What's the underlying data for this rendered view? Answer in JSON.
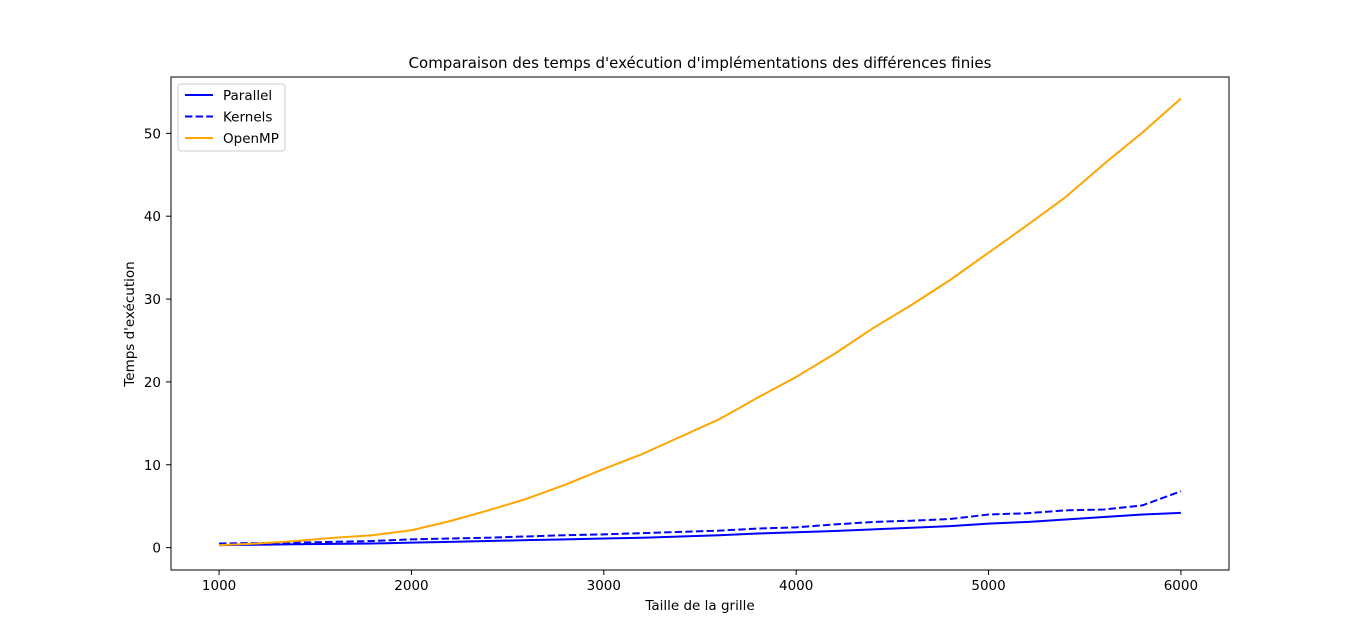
{
  "chart_data": {
    "type": "line",
    "title": "Comparaison des temps d'exécution d'implémentations des différences finies",
    "xlabel": "Taille de la grille",
    "ylabel": "Temps d'exécution",
    "xlim": [
      750,
      6250
    ],
    "ylim": [
      -2.7,
      56.8
    ],
    "xticks": [
      1000,
      2000,
      3000,
      4000,
      5000,
      6000
    ],
    "xtick_labels": [
      "1000",
      "2000",
      "3000",
      "4000",
      "5000",
      "6000"
    ],
    "yticks": [
      0,
      10,
      20,
      30,
      40,
      50
    ],
    "ytick_labels": [
      "0",
      "10",
      "20",
      "30",
      "40",
      "50"
    ],
    "grid": false,
    "legend_position": "top-left",
    "x": [
      1000,
      1200,
      1400,
      1600,
      1800,
      2000,
      2200,
      2400,
      2600,
      2800,
      3000,
      3200,
      3400,
      3600,
      3800,
      4000,
      4200,
      4400,
      4600,
      4800,
      5000,
      5200,
      5400,
      5600,
      5800,
      6000
    ],
    "series": [
      {
        "name": "Parallel",
        "color": "#0000ff",
        "linestyle": "solid",
        "values": [
          0.3,
          0.35,
          0.4,
          0.45,
          0.5,
          0.6,
          0.7,
          0.8,
          0.9,
          1.0,
          1.1,
          1.2,
          1.35,
          1.5,
          1.7,
          1.85,
          2.0,
          2.2,
          2.4,
          2.6,
          2.9,
          3.1,
          3.4,
          3.7,
          4.0,
          4.2
        ]
      },
      {
        "name": "Kernels",
        "color": "#0000ff",
        "linestyle": "dashed",
        "values": [
          0.5,
          0.55,
          0.6,
          0.7,
          0.8,
          1.0,
          1.1,
          1.2,
          1.35,
          1.5,
          1.6,
          1.75,
          1.9,
          2.05,
          2.3,
          2.45,
          2.8,
          3.1,
          3.25,
          3.45,
          4.0,
          4.15,
          4.5,
          4.6,
          5.1,
          6.8
        ]
      },
      {
        "name": "OpenMP",
        "color": "#ffa500",
        "linestyle": "solid",
        "values": [
          0.3,
          0.5,
          0.8,
          1.2,
          1.5,
          2.1,
          3.2,
          4.5,
          5.9,
          7.6,
          9.5,
          11.3,
          13.4,
          15.5,
          18.1,
          20.6,
          23.4,
          26.5,
          29.3,
          32.3,
          35.6,
          38.9,
          42.3,
          46.3,
          50.1,
          54.2
        ]
      }
    ]
  }
}
